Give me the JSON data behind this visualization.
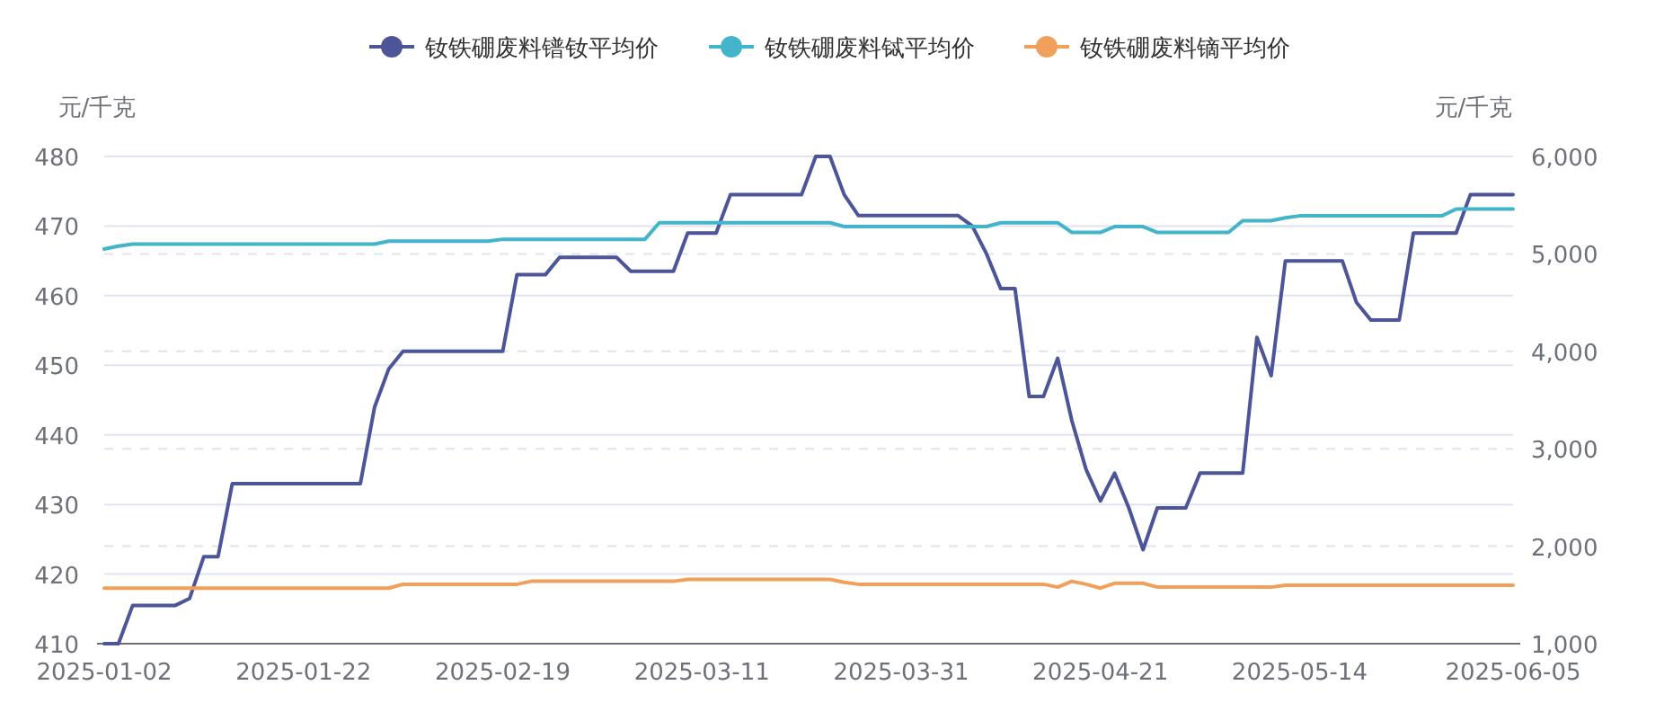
{
  "chart_data": {
    "type": "line",
    "legend": "top",
    "grid": true,
    "ylabel": "元/千克",
    "y2label": "元/千克",
    "ylim": [
      410,
      480
    ],
    "yticks": [
      410,
      420,
      430,
      440,
      450,
      460,
      470,
      480
    ],
    "y2lim": [
      1000,
      6000
    ],
    "y2ticks": [
      {
        "value": 1000,
        "label": "1,000"
      },
      {
        "value": 2000,
        "label": "2,000"
      },
      {
        "value": 3000,
        "label": "3,000"
      },
      {
        "value": 4000,
        "label": "4,000"
      },
      {
        "value": 5000,
        "label": "5,000"
      },
      {
        "value": 6000,
        "label": "6,000"
      }
    ],
    "categories": [
      "2025-01-02",
      null,
      null,
      null,
      null,
      null,
      null,
      null,
      null,
      null,
      null,
      null,
      null,
      null,
      "2025-01-22",
      null,
      null,
      null,
      null,
      null,
      null,
      null,
      null,
      null,
      null,
      null,
      null,
      null,
      "2025-02-19",
      null,
      null,
      null,
      null,
      null,
      null,
      null,
      null,
      null,
      null,
      null,
      null,
      null,
      "2025-03-11",
      null,
      null,
      null,
      null,
      null,
      null,
      null,
      null,
      null,
      null,
      null,
      null,
      null,
      "2025-03-31",
      null,
      null,
      null,
      null,
      null,
      null,
      null,
      null,
      null,
      null,
      null,
      null,
      null,
      "2025-04-21",
      null,
      null,
      null,
      null,
      null,
      null,
      null,
      null,
      null,
      null,
      null,
      null,
      null,
      "2025-05-14",
      null,
      null,
      null,
      null,
      null,
      null,
      null,
      null,
      null,
      null,
      null,
      null,
      null,
      null,
      "2025-06-05"
    ],
    "series": [
      {
        "name": "钕铁硼废料镨钕平均价",
        "color": "#4b5597",
        "values": [
          410,
          410,
          415.5,
          415.5,
          415.5,
          415.5,
          416.5,
          422.5,
          422.5,
          433,
          433,
          433,
          433,
          433,
          433,
          433,
          433,
          433,
          433,
          444,
          449.5,
          452,
          452,
          452,
          452,
          452,
          452,
          452,
          452,
          463,
          463,
          463,
          465.5,
          465.5,
          465.5,
          465.5,
          465.5,
          463.5,
          463.5,
          463.5,
          463.5,
          469,
          469,
          469,
          474.5,
          474.5,
          474.5,
          474.5,
          474.5,
          474.5,
          480,
          480,
          474.5,
          471.5,
          471.5,
          471.5,
          471.5,
          471.5,
          471.5,
          471.5,
          471.5,
          470,
          466,
          461,
          461,
          445.5,
          445.5,
          451,
          442,
          435,
          430.5,
          434.5,
          429.5,
          423.5,
          429.5,
          429.5,
          429.5,
          434.5,
          434.5,
          434.5,
          434.5,
          454,
          448.5,
          465,
          465,
          465,
          465,
          465,
          459,
          456.5,
          456.5,
          456.5,
          469,
          469,
          469,
          469,
          474.5,
          474.5,
          474.5,
          474.5
        ]
      },
      {
        "name": "钕铁硼废料铽平均价",
        "color": "#43b4c9",
        "axis": "y2",
        "values": [
          5050,
          5080,
          5100,
          5100,
          5100,
          5100,
          5100,
          5100,
          5100,
          5100,
          5100,
          5100,
          5100,
          5100,
          5100,
          5100,
          5100,
          5100,
          5100,
          5100,
          5130,
          5130,
          5130,
          5130,
          5130,
          5130,
          5130,
          5130,
          5150,
          5150,
          5150,
          5150,
          5150,
          5150,
          5150,
          5150,
          5150,
          5150,
          5150,
          5320,
          5320,
          5320,
          5320,
          5320,
          5320,
          5320,
          5320,
          5320,
          5320,
          5320,
          5320,
          5320,
          5280,
          5280,
          5280,
          5280,
          5280,
          5280,
          5280,
          5280,
          5280,
          5280,
          5280,
          5320,
          5320,
          5320,
          5320,
          5320,
          5220,
          5220,
          5220,
          5280,
          5280,
          5280,
          5220,
          5220,
          5220,
          5220,
          5220,
          5220,
          5340,
          5340,
          5340,
          5370,
          5390,
          5390,
          5390,
          5390,
          5390,
          5390,
          5390,
          5390,
          5390,
          5390,
          5390,
          5460,
          5460,
          5460,
          5460,
          5460
        ]
      },
      {
        "name": "钕铁硼废料镝平均价",
        "color": "#f0a05a",
        "axis": "y2",
        "values": [
          1570,
          1570,
          1570,
          1570,
          1570,
          1570,
          1570,
          1570,
          1570,
          1570,
          1570,
          1570,
          1570,
          1570,
          1570,
          1570,
          1570,
          1570,
          1570,
          1570,
          1570,
          1610,
          1610,
          1610,
          1610,
          1610,
          1610,
          1610,
          1610,
          1610,
          1640,
          1640,
          1640,
          1640,
          1640,
          1640,
          1640,
          1640,
          1640,
          1640,
          1640,
          1660,
          1660,
          1660,
          1660,
          1660,
          1660,
          1660,
          1660,
          1660,
          1660,
          1660,
          1630,
          1610,
          1610,
          1610,
          1610,
          1610,
          1610,
          1610,
          1610,
          1610,
          1610,
          1610,
          1610,
          1610,
          1610,
          1580,
          1640,
          1610,
          1570,
          1620,
          1620,
          1620,
          1580,
          1580,
          1580,
          1580,
          1580,
          1580,
          1580,
          1580,
          1580,
          1600,
          1600,
          1600,
          1600,
          1600,
          1600,
          1600,
          1600,
          1600,
          1600,
          1600,
          1600,
          1600,
          1600,
          1600,
          1600,
          1600
        ]
      }
    ]
  }
}
